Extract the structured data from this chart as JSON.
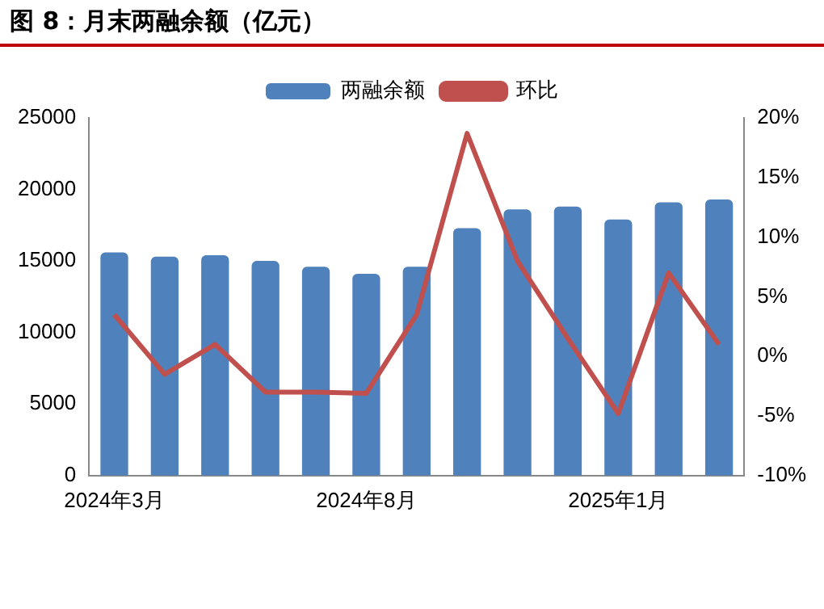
{
  "chart_data": {
    "type": "bar",
    "title": "图 8：月末两融余额（亿元）",
    "categories": [
      "2024年3月",
      null,
      null,
      null,
      null,
      "2024年8月",
      null,
      null,
      null,
      null,
      "2025年1月",
      null,
      null
    ],
    "series": [
      {
        "name": "两融余额",
        "color": "#4f81bd",
        "values": [
          15600,
          15300,
          15400,
          15000,
          14600,
          14100,
          14600,
          17300,
          18600,
          18800,
          17900,
          19100,
          19300
        ]
      },
      {
        "name": "环比",
        "type": "line",
        "axis": "y2",
        "color": "#c0504d",
        "values": [
          3.5,
          -1.5,
          1,
          -3,
          -3,
          -3.1,
          3.5,
          18.7,
          8,
          1.5,
          -4.8,
          7,
          1
        ]
      }
    ],
    "ylim": [
      0,
      25000
    ],
    "yticks": [
      0,
      5000,
      10000,
      15000,
      20000,
      25000
    ],
    "y2lim": [
      -10,
      20
    ],
    "y2ticks": [
      {
        "value": -10,
        "label": "-10%"
      },
      {
        "value": -5,
        "label": "-5%"
      },
      {
        "value": 0,
        "label": "0%"
      },
      {
        "value": 5,
        "label": "5%"
      },
      {
        "value": 10,
        "label": "10%"
      },
      {
        "value": 15,
        "label": "15%"
      },
      {
        "value": 20,
        "label": "20%"
      }
    ],
    "grid": false,
    "legend": "top",
    "marker": "none"
  }
}
